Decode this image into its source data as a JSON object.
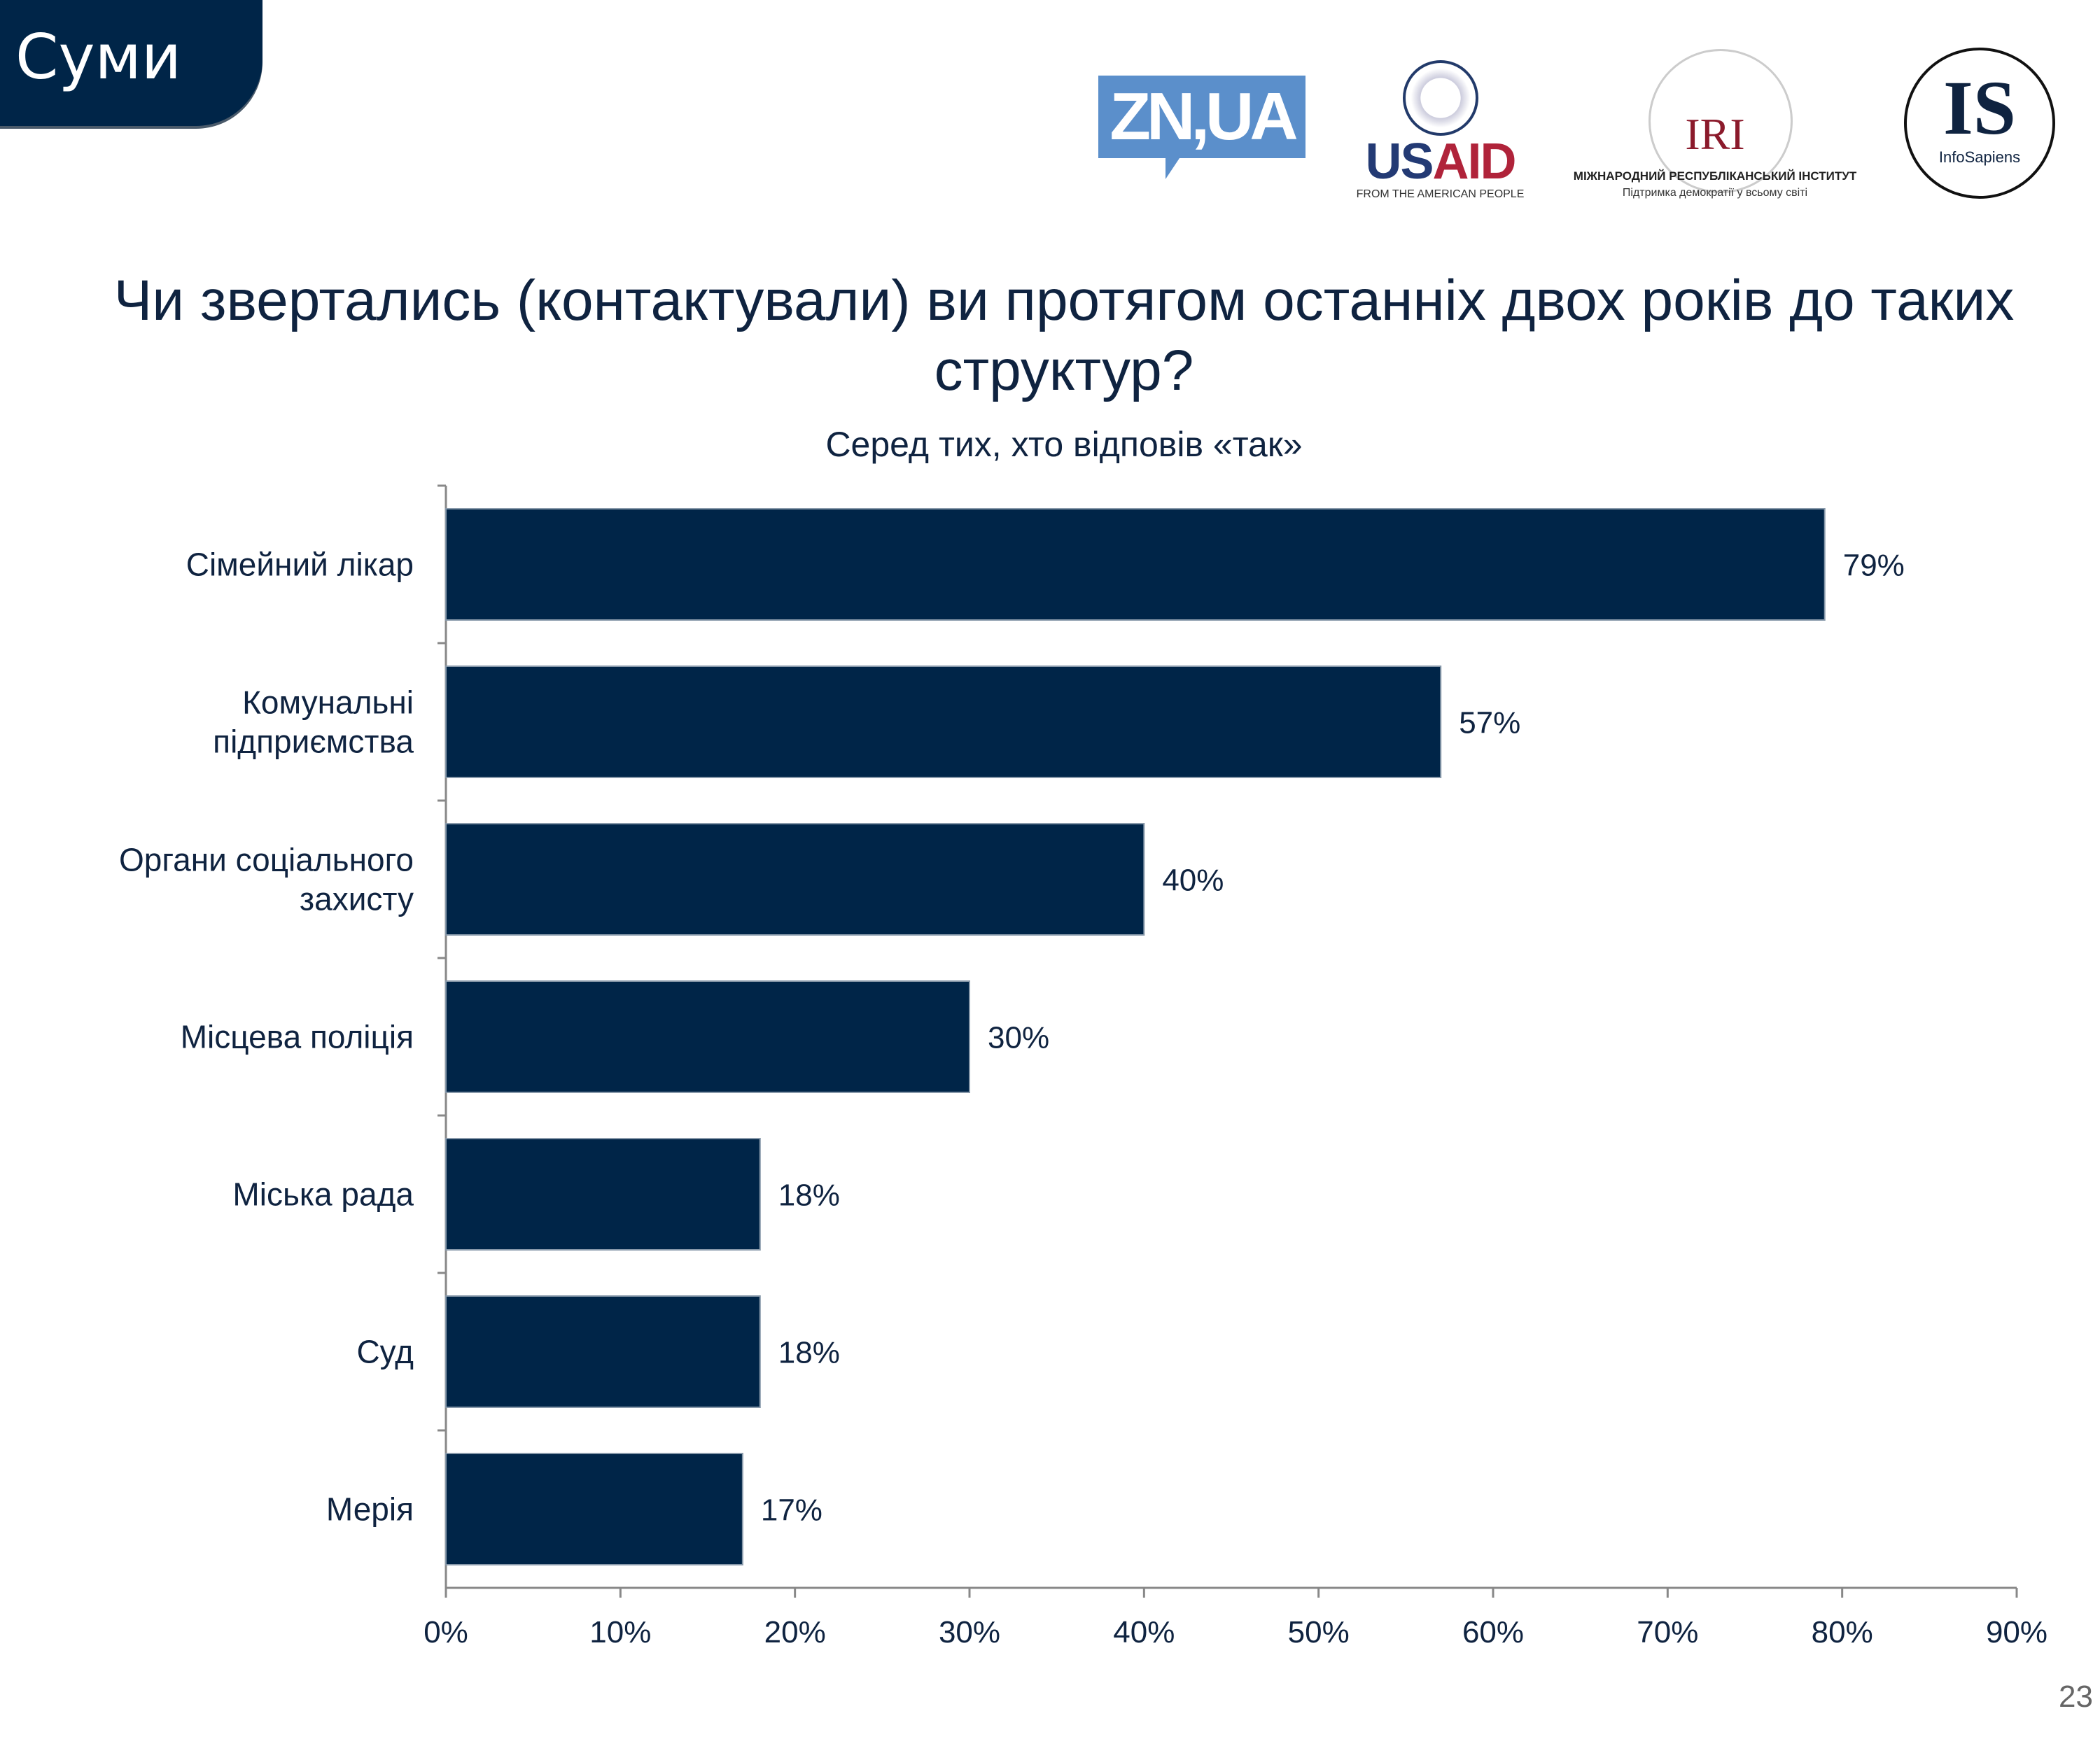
{
  "header": {
    "city_badge": "Суми",
    "logos": {
      "zn": "ZN,UA",
      "usaid": "USAID",
      "usaid_tagline": "FROM THE AMERICAN PEOPLE",
      "iri": "IRI",
      "iri_name": "МІЖНАРОДНИЙ РЕСПУБЛІКАНСЬКИЙ ІНСТИТУТ",
      "iri_tagline": "Підтримка демократії у всьому світі",
      "is": "IS",
      "is_name": "InfoSapiens"
    }
  },
  "page_number": "23",
  "chart_data": {
    "type": "bar",
    "orientation": "horizontal",
    "title": "Чи звертались (контактували) ви протягом останніх двох років до таких структур?",
    "subtitle": "Серед тих, хто відповів «так»",
    "categories": [
      "Сімейний лікар",
      "Комунальні підприємства",
      "Органи соціального захисту",
      "Місцева поліція",
      "Міська рада",
      "Суд",
      "Мерія"
    ],
    "category_lines": [
      [
        "Сімейний лікар"
      ],
      [
        "Комунальні",
        "підприємства"
      ],
      [
        "Органи соціального",
        "захисту"
      ],
      [
        "Місцева поліція"
      ],
      [
        "Міська рада"
      ],
      [
        "Суд"
      ],
      [
        "Мерія"
      ]
    ],
    "values": [
      79,
      57,
      40,
      30,
      18,
      18,
      17
    ],
    "data_labels": [
      "79%",
      "57%",
      "40%",
      "30%",
      "18%",
      "18%",
      "17%"
    ],
    "xlim": [
      0,
      90
    ],
    "x_ticks": [
      "0%",
      "10%",
      "20%",
      "30%",
      "40%",
      "50%",
      "60%",
      "70%",
      "80%",
      "90%"
    ],
    "grid": false,
    "bar_color": "#002548"
  }
}
